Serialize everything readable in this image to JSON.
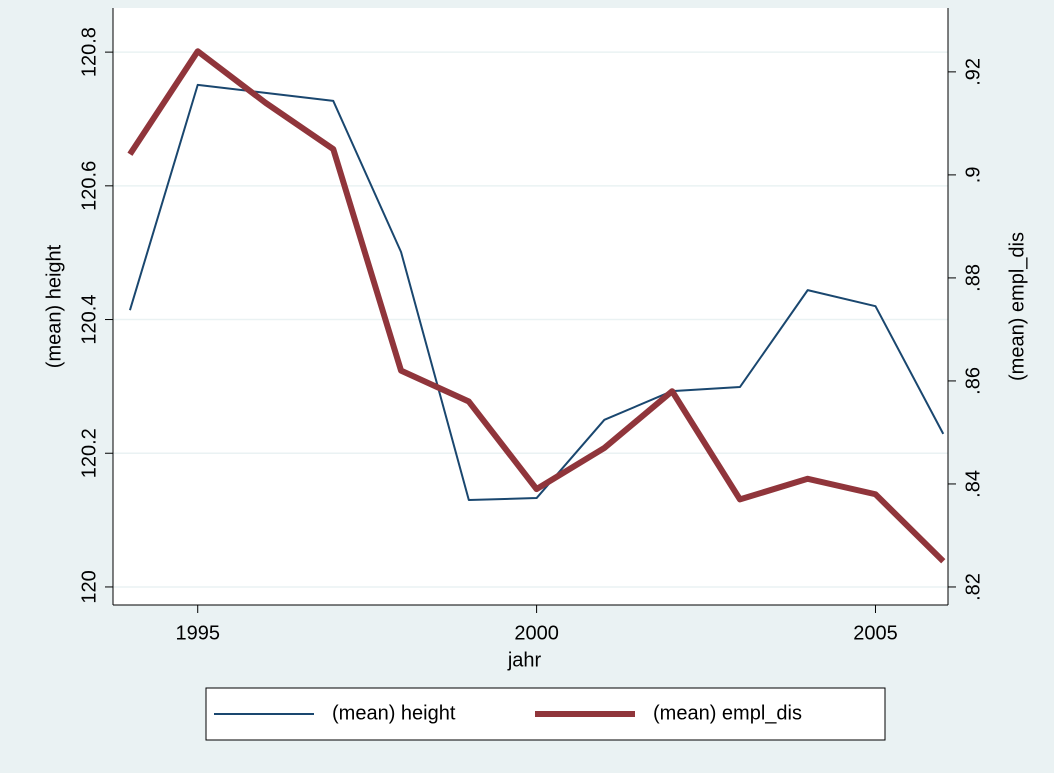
{
  "chart_data": {
    "type": "line",
    "x": [
      1994,
      1995,
      1996,
      1997,
      1998,
      1999,
      2000,
      2001,
      2002,
      2003,
      2004,
      2005,
      2006
    ],
    "xlabel": "jahr",
    "ylabel": "(mean) height",
    "y2label": "(mean) empl_dis",
    "xlim": [
      1993.75,
      2006.07
    ],
    "xticks": [
      1995,
      2000,
      2005
    ],
    "ylim": [
      119.973,
      120.866
    ],
    "yticks": [
      120,
      120.2,
      120.4,
      120.6,
      120.8
    ],
    "y2lim": [
      0.8165,
      0.9324
    ],
    "y2ticks": [
      {
        "value": 0.82,
        "label": ".82"
      },
      {
        "value": 0.84,
        "label": ".84"
      },
      {
        "value": 0.86,
        "label": ".86"
      },
      {
        "value": 0.88,
        "label": ".88"
      },
      {
        "value": 0.9,
        "label": ".9"
      },
      {
        "value": 0.92,
        "label": ".92"
      }
    ],
    "grid": true,
    "legend": "bottom",
    "series": [
      {
        "name": "(mean) height",
        "color": "#1a476f",
        "width": 2,
        "values": [
          120.414,
          120.751,
          120.739,
          120.727,
          120.501,
          120.13,
          120.133,
          120.25,
          120.293,
          120.299,
          120.444,
          120.42,
          120.229
        ]
      },
      {
        "name": "(mean) empl_dis",
        "color": "#90353b",
        "width": 6,
        "axis": "y2",
        "values": [
          0.904,
          0.924,
          0.914,
          0.905,
          0.862,
          0.856,
          0.839,
          0.847,
          0.858,
          0.837,
          0.841,
          0.838,
          0.825
        ]
      }
    ]
  }
}
